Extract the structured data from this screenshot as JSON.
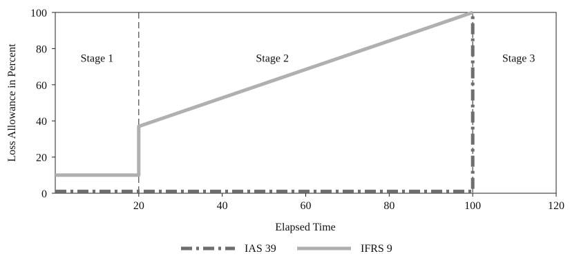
{
  "chart_data": {
    "type": "line",
    "xlabel": "Elapsed Time",
    "ylabel": "Loss Allowance in Percent",
    "xlim": [
      0,
      120
    ],
    "ylim": [
      0,
      100
    ],
    "x_ticks": [
      20,
      40,
      60,
      80,
      100,
      120
    ],
    "y_ticks": [
      0,
      20,
      40,
      60,
      80,
      100
    ],
    "grid": false,
    "legend_position": "bottom-center",
    "stage_boundaries": [
      20,
      100
    ],
    "stage_labels": [
      {
        "text": "Stage 1",
        "x": 10,
        "y": 75
      },
      {
        "text": "Stage 2",
        "x": 52,
        "y": 75
      },
      {
        "text": "Stage 3",
        "x": 111,
        "y": 75
      }
    ],
    "series": [
      {
        "name": "IAS 39",
        "style": "dash-dot",
        "color": "#6e6e6e",
        "points": [
          [
            0,
            1
          ],
          [
            100,
            1
          ],
          [
            100,
            100
          ]
        ]
      },
      {
        "name": "IFRS 9",
        "style": "solid",
        "color": "#b0b0b0",
        "points": [
          [
            0,
            10
          ],
          [
            20,
            10
          ],
          [
            20,
            37
          ],
          [
            100,
            100
          ]
        ]
      }
    ]
  }
}
